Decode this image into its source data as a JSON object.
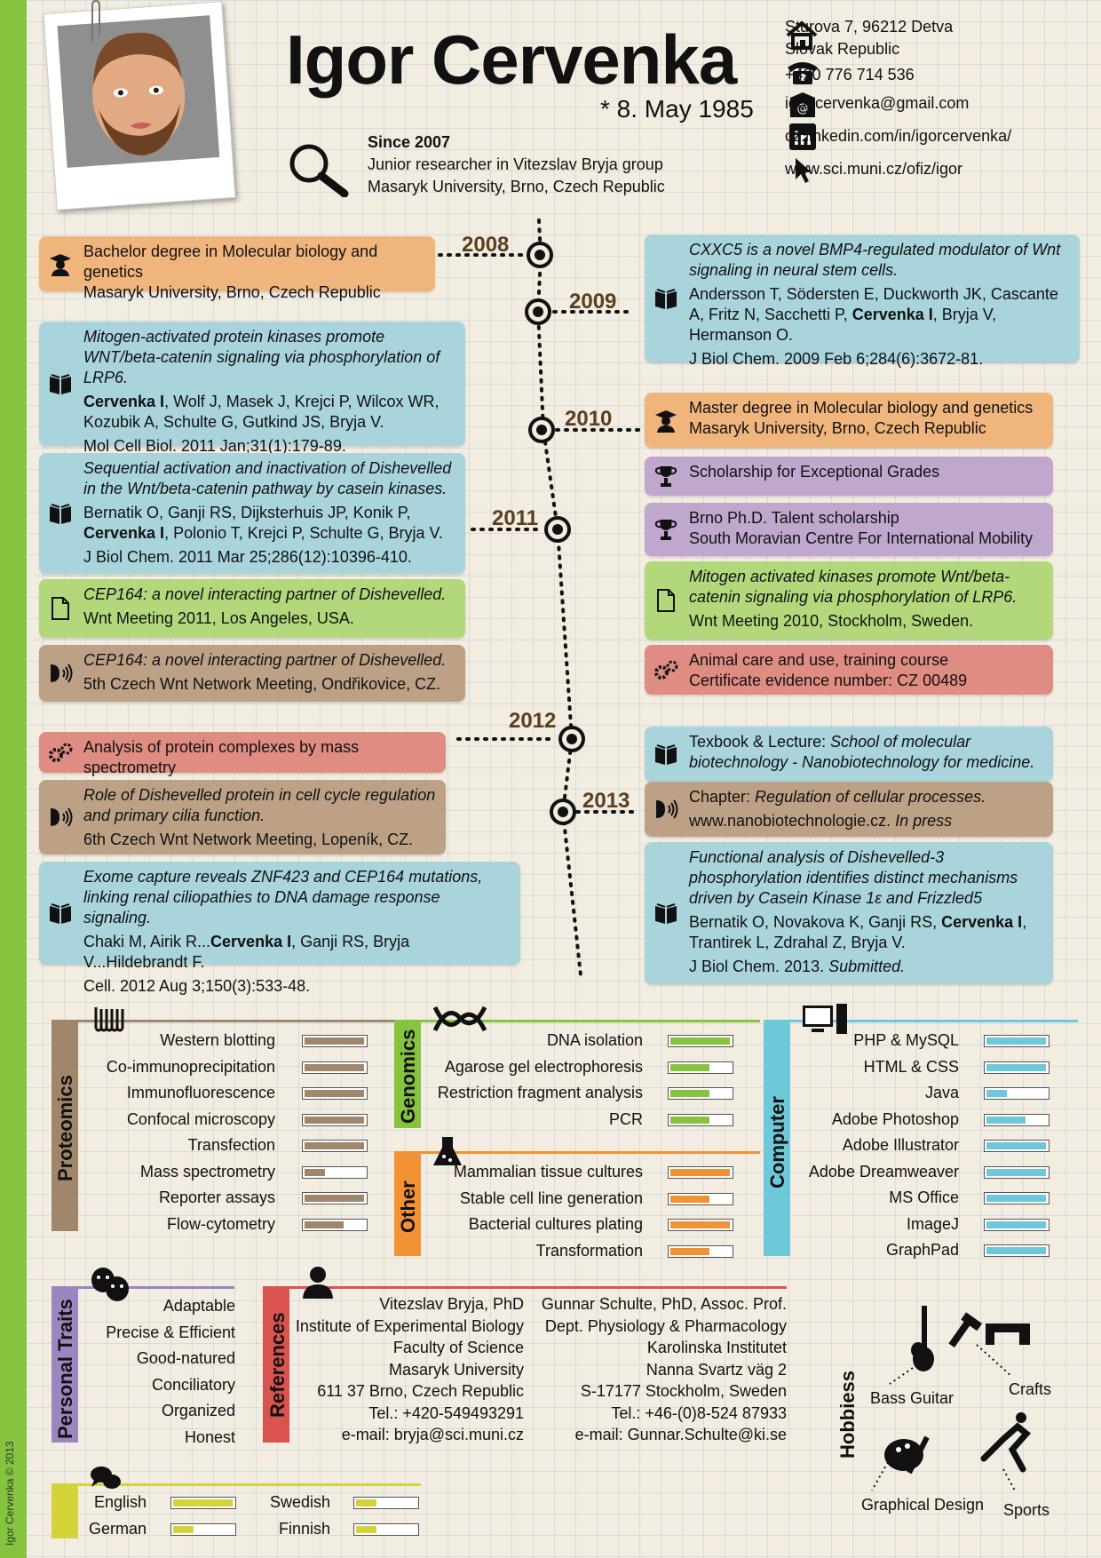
{
  "header": {
    "name": "Igor Cervenka",
    "birth": "* 8. May 1985",
    "since_title": "Since 2007",
    "since_line1": "Junior researcher in Vitezslav Bryja group",
    "since_line2": "Masaryk University, Brno, Czech Republic"
  },
  "contact": {
    "address1": "Sturova 7, 96212 Detva",
    "address2": "Slovak Republic",
    "phone": "+420 776 714 536",
    "email": "igor.cervenka@gmail.com",
    "linkedin": "cz.linkedin.com/in/igorcervenka/",
    "web": "www.sci.muni.cz/ofiz/igor"
  },
  "timeline": {
    "years": [
      "2008",
      "2009",
      "2010",
      "2011",
      "2012",
      "2013"
    ],
    "left": [
      {
        "color": "orange",
        "icon": "graduate-icon",
        "lines": [
          "Bachelor degree in Molecular biology and genetics",
          "Masaryk University, Brno, Czech Republic"
        ]
      },
      {
        "color": "blue",
        "icon": "book-icon",
        "title": "Mitogen-activated protein kinases promote WNT/beta-catenin signaling via phosphorylation of LRP6.",
        "authors_pre": "",
        "authors_bold": "Cervenka I",
        "authors_post": ", Wolf J, Masek J, Krejci P, Wilcox WR, Kozubik A, Schulte G, Gutkind JS, Bryja V.",
        "journal": "Mol Cell Biol. 2011 Jan;31(1):179-89."
      },
      {
        "color": "blue",
        "icon": "book-icon",
        "title": "Sequential activation and inactivation of Dishevelled in the Wnt/beta-catenin pathway by casein kinases.",
        "authors_pre": "Bernatik O, Ganji RS, Dijksterhuis JP, Konik P, ",
        "authors_bold": "Cervenka I",
        "authors_post": ", Polonio T, Krejci P, Schulte G, Bryja V.",
        "journal": "J Biol Chem. 2011 Mar 25;286(12):10396-410."
      },
      {
        "color": "green",
        "icon": "document-icon",
        "title": "CEP164: a novel interacting partner of Dishevelled.",
        "line": "Wnt Meeting 2011, Los Angeles, USA."
      },
      {
        "color": "brown",
        "icon": "speaker-icon",
        "title": "CEP164: a novel interacting partner of Dishevelled.",
        "line": "5th Czech Wnt Network Meeting, Ondřikovice, CZ."
      },
      {
        "color": "red",
        "icon": "gears-icon",
        "lines": [
          "Analysis of protein complexes by mass spectrometry"
        ]
      },
      {
        "color": "brown",
        "icon": "speaker-icon",
        "title": "Role of Dishevelled protein in cell cycle regulation and primary cilia function.",
        "line": "6th Czech Wnt Network Meeting, Lopeník, CZ."
      },
      {
        "color": "blue",
        "icon": "book-icon",
        "title": "Exome capture reveals ZNF423 and CEP164 mutations, linking renal ciliopathies to DNA damage response signaling.",
        "authors_pre": "Chaki M, Airik R...",
        "authors_bold": "Cervenka I",
        "authors_post": ", Ganji RS, Bryja V...Hildebrandt F.",
        "journal": "Cell. 2012 Aug 3;150(3):533-48."
      }
    ],
    "right": [
      {
        "color": "blue",
        "icon": "book-icon",
        "title": "CXXC5 is a novel BMP4-regulated modulator of Wnt signaling in neural stem cells.",
        "authors_pre": "Andersson T, Södersten E, Duckworth JK, Cascante A, Fritz N, Sacchetti P, ",
        "authors_bold": "Cervenka I",
        "authors_post": ", Bryja V, Hermanson O.",
        "journal": "J Biol Chem. 2009 Feb 6;284(6):3672-81."
      },
      {
        "color": "orange",
        "icon": "graduate-icon",
        "lines": [
          "Master degree in Molecular biology and genetics",
          "Masaryk University, Brno, Czech Republic"
        ]
      },
      {
        "color": "purple",
        "icon": "trophy-icon",
        "lines": [
          "Scholarship for Exceptional Grades"
        ]
      },
      {
        "color": "purple",
        "icon": "trophy-icon",
        "lines": [
          "Brno Ph.D. Talent scholarship",
          "South Moravian Centre For International Mobility"
        ]
      },
      {
        "color": "green",
        "icon": "document-icon",
        "title": "Mitogen activated kinases promote Wnt/beta-catenin signaling via phosphorylation of LRP6.",
        "line": "Wnt Meeting 2010, Stockholm, Sweden."
      },
      {
        "color": "red",
        "icon": "gears-icon",
        "lines": [
          "Animal care and use, training course",
          "Certificate evidence number: CZ 00489"
        ]
      },
      {
        "color": "blue",
        "icon": "book-icon",
        "pre": "Texbook & Lecture: ",
        "ital": "School of molecular biotechnology - Nanobiotechnology for medicine."
      },
      {
        "color": "brown",
        "icon": "speaker-icon",
        "pre": "Chapter: ",
        "ital": "Regulation of cellular processes.",
        "line_pre": "www.nanobiotechnologie.cz. ",
        "line_ital": "In press"
      },
      {
        "color": "blue",
        "icon": "book-icon",
        "title": "Functional analysis of Dishevelled-3 phosphorylation identifies distinct mechanisms driven by Casein Kinase 1ε and Frizzled5",
        "authors_pre": "Bernatik O, Novakova K, Ganji RS, ",
        "authors_bold": "Cervenka I",
        "authors_post": ", Trantirek L, Zdrahal Z, Bryja V.",
        "journal_pre": "J Biol Chem. 2013. ",
        "journal_ital": "Submitted."
      }
    ]
  },
  "skills": {
    "proteomics": {
      "label": "Proteomics",
      "color": "#a0866a",
      "items": [
        {
          "name": "Western blotting",
          "level": 1.0
        },
        {
          "name": "Co-immunoprecipitation",
          "level": 1.0
        },
        {
          "name": "Immunofluorescence",
          "level": 1.0
        },
        {
          "name": "Confocal microscopy",
          "level": 1.0
        },
        {
          "name": "Transfection",
          "level": 1.0
        },
        {
          "name": "Mass spectrometry",
          "level": 0.35
        },
        {
          "name": "Reporter assays",
          "level": 1.0
        },
        {
          "name": "Flow-cytometry",
          "level": 0.65
        }
      ]
    },
    "genomics": {
      "label": "Genomics",
      "color": "#86c440",
      "items": [
        {
          "name": "DNA isolation",
          "level": 1.0
        },
        {
          "name": "Agarose gel electrophoresis",
          "level": 0.65
        },
        {
          "name": "Restriction fragment analysis",
          "level": 0.65
        },
        {
          "name": "PCR",
          "level": 0.65
        }
      ]
    },
    "other": {
      "label": "Other",
      "color": "#f39235",
      "items": [
        {
          "name": "Mammalian tissue cultures",
          "level": 1.0
        },
        {
          "name": "Stable cell line generation",
          "level": 0.65
        },
        {
          "name": "Bacterial cultures plating",
          "level": 1.0
        },
        {
          "name": "Transformation",
          "level": 0.65
        }
      ]
    },
    "computer": {
      "label": "Computer",
      "color": "#6dc9d9",
      "items": [
        {
          "name": "PHP & MySQL",
          "level": 1.0
        },
        {
          "name": "HTML & CSS",
          "level": 1.0
        },
        {
          "name": "Java",
          "level": 0.35
        },
        {
          "name": "Adobe Photoshop",
          "level": 0.65
        },
        {
          "name": "Adobe Illustrator",
          "level": 1.0
        },
        {
          "name": "Adobe Dreamweaver",
          "level": 1.0
        },
        {
          "name": "MS Office",
          "level": 1.0
        },
        {
          "name": "ImageJ",
          "level": 1.0
        },
        {
          "name": "GraphPad",
          "level": 1.0
        }
      ]
    }
  },
  "traits": {
    "label": "Personal  Traits",
    "color": "#9b86c0",
    "items": [
      "Adaptable",
      "Precise & Efficient",
      "Good-natured",
      "Conciliatory",
      "Organized",
      "Honest"
    ]
  },
  "references": {
    "label": "References",
    "color": "#d9534f",
    "ref1": [
      "Vitezslav Bryja, PhD",
      "Institute of Experimental Biology",
      "Faculty of Science",
      "Masaryk University",
      "611 37 Brno, Czech Republic",
      "Tel.: +420-549493291",
      "e-mail: bryja@sci.muni.cz"
    ],
    "ref2": [
      "Gunnar Schulte, PhD, Assoc. Prof.",
      "Dept. Physiology & Pharmacology",
      "Karolinska Institutet",
      "Nanna Svartz väg 2",
      "S-17177 Stockholm,  Sweden",
      "Tel.: +46-(0)8-524 87933",
      "e-mail: Gunnar.Schulte@ki.se"
    ]
  },
  "languages": {
    "color": "#d4d43a",
    "items": [
      {
        "name": "English",
        "level": 1.0
      },
      {
        "name": "German",
        "level": 0.35
      },
      {
        "name": "Swedish",
        "level": 0.35
      },
      {
        "name": "Finnish",
        "level": 0.35
      }
    ]
  },
  "hobbies": {
    "label": "Hobbiess",
    "items": [
      "Bass Guitar",
      "Crafts",
      "Graphical Design",
      "Sports"
    ]
  },
  "copyright": "Igor Cervenka © 2013"
}
